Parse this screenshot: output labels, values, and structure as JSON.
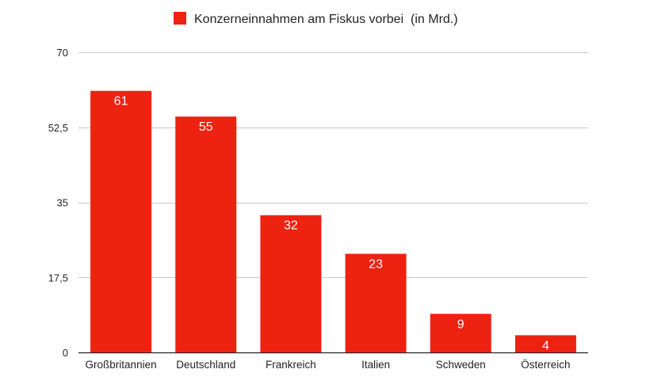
{
  "chart_data": {
    "type": "bar",
    "categories": [
      "Großbritannien",
      "Deutschland",
      "Frankreich",
      "Italien",
      "Schweden",
      "Österreich"
    ],
    "series": [
      {
        "name": "Konzerneinnahmen am Fiskus vorbei  (in Mrd.)",
        "values": [
          61,
          55,
          32,
          23,
          9,
          4
        ],
        "color": "#ee2211"
      }
    ],
    "data_labels": [
      "61",
      "55",
      "32",
      "23",
      "9",
      "4"
    ],
    "y_ticks": [
      0,
      17.5,
      35,
      52.5,
      70
    ],
    "y_tick_labels": [
      "0",
      "17,5",
      "35",
      "52,5",
      "70"
    ],
    "ylim": [
      0,
      70
    ],
    "grid": true,
    "legend_position": "top"
  }
}
